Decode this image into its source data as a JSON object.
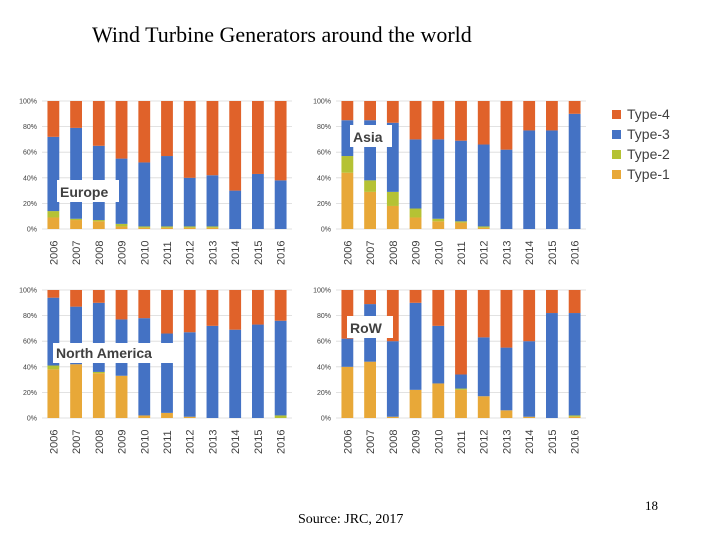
{
  "title": "Wind Turbine Generators around the world",
  "source": "Source: JRC, 2017",
  "page_number": "18",
  "colors": {
    "Type-1": "#E8A838",
    "Type-2": "#B5C234",
    "Type-3": "#4472C4",
    "Type-4": "#E0622A"
  },
  "chart_data": [
    {
      "type": "bar",
      "stacked": true,
      "percent": true,
      "title": "Europe",
      "categories": [
        "2006",
        "2007",
        "2008",
        "2009",
        "2010",
        "2011",
        "2012",
        "2013",
        "2014",
        "2015",
        "2016"
      ],
      "y_ticks": [
        "0%",
        "20%",
        "40%",
        "60%",
        "80%",
        "100%"
      ],
      "ylim": [
        0,
        100
      ],
      "series": [
        {
          "name": "Type-1",
          "values": [
            9,
            7,
            6,
            2,
            1,
            1,
            1,
            1,
            0,
            0,
            0
          ]
        },
        {
          "name": "Type-2",
          "values": [
            5,
            1,
            1,
            2,
            1,
            1,
            1,
            1,
            0,
            0,
            0
          ]
        },
        {
          "name": "Type-3",
          "values": [
            58,
            71,
            58,
            51,
            50,
            55,
            38,
            40,
            30,
            43,
            38
          ]
        },
        {
          "name": "Type-4",
          "values": [
            28,
            21,
            35,
            45,
            48,
            43,
            60,
            58,
            70,
            57,
            62
          ]
        }
      ]
    },
    {
      "type": "bar",
      "stacked": true,
      "percent": true,
      "title": "Asia",
      "categories": [
        "2006",
        "2007",
        "2008",
        "2009",
        "2010",
        "2011",
        "2012",
        "2013",
        "2014",
        "2015",
        "2016"
      ],
      "y_ticks": [
        "0%",
        "20%",
        "40%",
        "60%",
        "80%",
        "100%"
      ],
      "ylim": [
        0,
        100
      ],
      "series": [
        {
          "name": "Type-1",
          "values": [
            44,
            29,
            18,
            9,
            6,
            5,
            1,
            0,
            0,
            0,
            0
          ]
        },
        {
          "name": "Type-2",
          "values": [
            13,
            9,
            11,
            7,
            2,
            1,
            1,
            0,
            0,
            0,
            0
          ]
        },
        {
          "name": "Type-3",
          "values": [
            28,
            47,
            54,
            54,
            62,
            63,
            64,
            62,
            77,
            77,
            90
          ]
        },
        {
          "name": "Type-4",
          "values": [
            15,
            15,
            17,
            30,
            30,
            31,
            34,
            38,
            23,
            23,
            10
          ]
        }
      ]
    },
    {
      "type": "bar",
      "stacked": true,
      "percent": true,
      "title": "North America",
      "categories": [
        "2006",
        "2007",
        "2008",
        "2009",
        "2010",
        "2011",
        "2012",
        "2013",
        "2014",
        "2015",
        "2016"
      ],
      "y_ticks": [
        "0%",
        "20%",
        "40%",
        "60%",
        "80%",
        "100%"
      ],
      "ylim": [
        0,
        100
      ],
      "series": [
        {
          "name": "Type-1",
          "values": [
            38,
            42,
            35,
            33,
            2,
            4,
            1,
            0,
            0,
            0,
            0
          ]
        },
        {
          "name": "Type-2",
          "values": [
            3,
            0,
            1,
            0,
            0,
            0,
            0,
            0,
            0,
            0,
            2
          ]
        },
        {
          "name": "Type-3",
          "values": [
            53,
            45,
            54,
            44,
            76,
            62,
            66,
            72,
            69,
            73,
            74
          ]
        },
        {
          "name": "Type-4",
          "values": [
            6,
            13,
            10,
            23,
            22,
            34,
            33,
            28,
            31,
            27,
            24
          ]
        }
      ]
    },
    {
      "type": "bar",
      "stacked": true,
      "percent": true,
      "title": "RoW",
      "categories": [
        "2006",
        "2007",
        "2008",
        "2009",
        "2010",
        "2011",
        "2012",
        "2013",
        "2014",
        "2015",
        "2016"
      ],
      "y_ticks": [
        "0%",
        "20%",
        "40%",
        "60%",
        "80%",
        "100%"
      ],
      "ylim": [
        0,
        100
      ],
      "series": [
        {
          "name": "Type-1",
          "values": [
            40,
            44,
            1,
            22,
            27,
            22,
            17,
            6,
            1,
            0,
            1
          ]
        },
        {
          "name": "Type-2",
          "values": [
            0,
            0,
            0,
            0,
            0,
            1,
            0,
            0,
            0,
            0,
            1
          ]
        },
        {
          "name": "Type-3",
          "values": [
            22,
            45,
            59,
            68,
            45,
            11,
            46,
            49,
            59,
            82,
            80
          ]
        },
        {
          "name": "Type-4",
          "values": [
            38,
            11,
            40,
            10,
            28,
            66,
            37,
            45,
            40,
            18,
            18
          ]
        }
      ]
    }
  ]
}
